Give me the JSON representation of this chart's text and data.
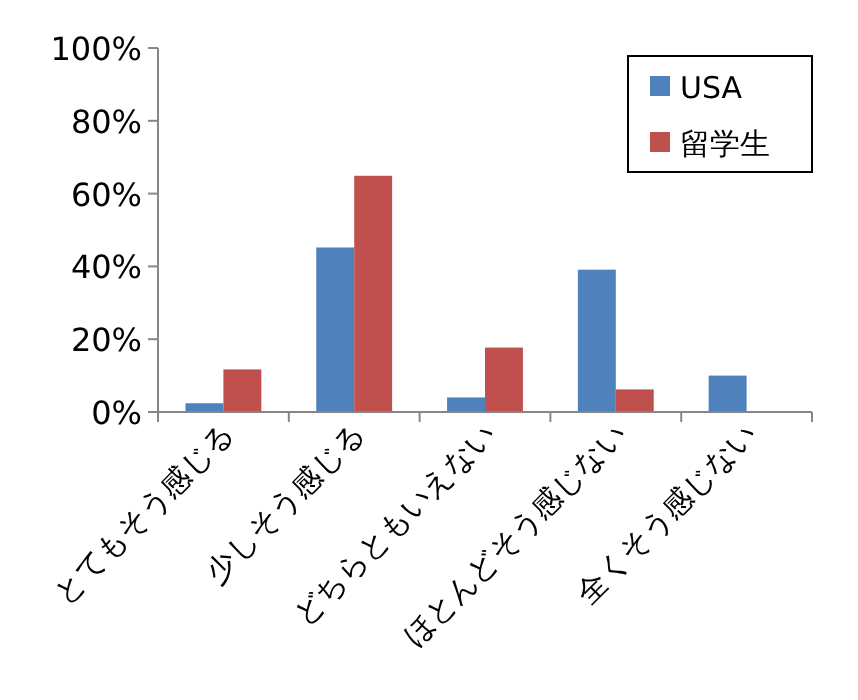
{
  "chart_data": {
    "type": "bar",
    "categories": [
      "とてもそう感じる",
      "少しそう感じる",
      "どちらともいえない",
      "ほとんどそう感じない",
      "全くそう感じない"
    ],
    "series": [
      {
        "name": "USA",
        "color": "#4f81bd",
        "values": [
          2.4,
          45.2,
          4.0,
          39.1,
          10.0
        ]
      },
      {
        "name": "留学生",
        "color": "#c0504d",
        "values": [
          11.7,
          64.9,
          17.7,
          6.2,
          0
        ]
      }
    ],
    "ylim": [
      0,
      100
    ],
    "yticks": [
      {
        "value": 0,
        "label": "0%"
      },
      {
        "value": 20,
        "label": "20%"
      },
      {
        "value": 40,
        "label": "40%"
      },
      {
        "value": 60,
        "label": "60%"
      },
      {
        "value": 80,
        "label": "80%"
      },
      {
        "value": 100,
        "label": "100%"
      }
    ],
    "legend": "top right"
  }
}
